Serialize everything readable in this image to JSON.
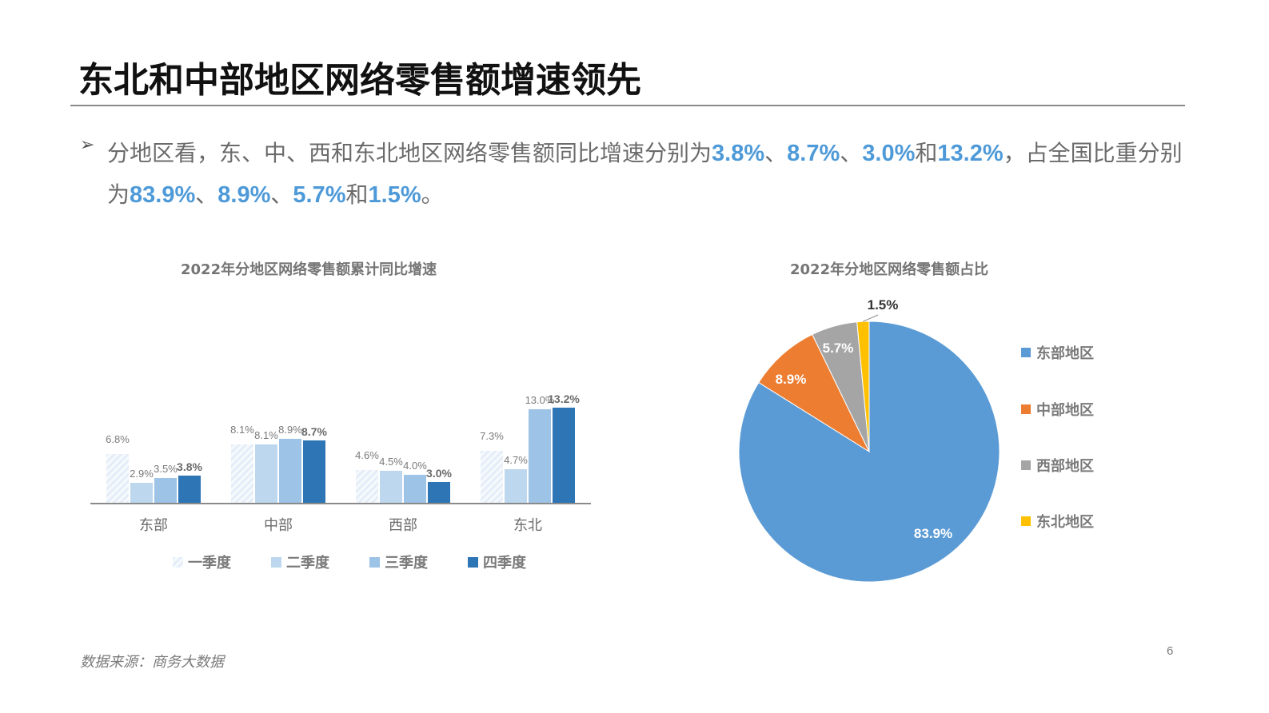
{
  "slide": {
    "title": "东北和中部地区网络零售额增速领先",
    "bullet_glyph": "➢",
    "paragraph": {
      "seg1": "分地区看，东、中、西和东北地区网络零售额同比增速分别为",
      "v1": "3.8%",
      "s2": "、",
      "v2": "8.7%",
      "s3": "、",
      "v3": "3.0%",
      "s4": "和",
      "v4": "13.2%",
      "s5": "，占全国比重分别为",
      "v5": "83.9%",
      "s6": "、",
      "v6": "8.9%",
      "s7": "、",
      "v7": "5.7%",
      "s8": "和",
      "v8": "1.5%",
      "s9": "。"
    },
    "source": "数据来源：商务大数据",
    "page_number": "6",
    "colors": {
      "highlight": "#4e9ad8",
      "q1": "#e5eef8",
      "q2": "#bdd7ee",
      "q3": "#9dc3e6",
      "q4": "#2e75b6",
      "east": "#5b9bd5",
      "central": "#ed7d31",
      "west": "#a5a5a5",
      "northeast": "#ffc000"
    }
  },
  "chart_data": [
    {
      "type": "bar",
      "title": "2022年分地区网络零售额累计同比增速",
      "categories": [
        "东部",
        "中部",
        "西部",
        "东北"
      ],
      "series": [
        {
          "name": "一季度",
          "values": [
            6.8,
            8.1,
            4.6,
            7.3
          ],
          "labels": [
            "6.8%",
            "8.1%",
            "4.6%",
            "7.3%"
          ]
        },
        {
          "name": "二季度",
          "values": [
            2.9,
            8.1,
            4.5,
            4.7
          ],
          "labels": [
            "2.9%",
            "8.1%",
            "4.5%",
            "4.7%"
          ]
        },
        {
          "name": "三季度",
          "values": [
            3.5,
            8.9,
            4.0,
            13.0
          ],
          "labels": [
            "3.5%",
            "8.9%",
            "4.0%",
            "13.0%"
          ]
        },
        {
          "name": "四季度",
          "values": [
            3.8,
            8.7,
            3.0,
            13.2
          ],
          "labels": [
            "3.8%",
            "8.7%",
            "3.0%",
            "13.2%"
          ]
        }
      ],
      "xlabel": "",
      "ylabel": "",
      "unit": "%",
      "grid": false,
      "legend_position": "bottom"
    },
    {
      "type": "pie",
      "title": "2022年分地区网络零售额占比",
      "categories": [
        "东部地区",
        "中部地区",
        "西部地区",
        "东北地区"
      ],
      "values": [
        83.9,
        8.9,
        5.7,
        1.5
      ],
      "labels": [
        "83.9%",
        "8.9%",
        "5.7%",
        "1.5%"
      ],
      "legend_position": "right"
    }
  ]
}
